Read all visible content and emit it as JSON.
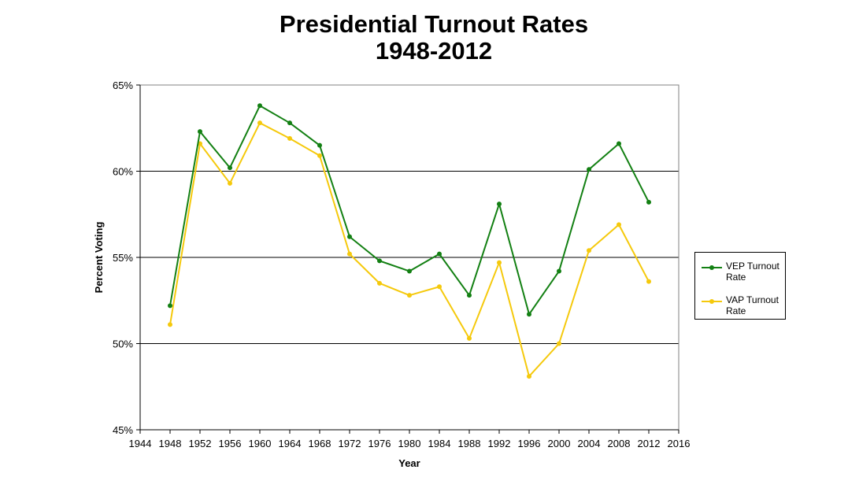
{
  "chart_data": {
    "type": "line",
    "title": [
      "Presidential Turnout Rates",
      "1948-2012"
    ],
    "xlabel": "Year",
    "ylabel": "Percent Voting",
    "x_ticks": [
      "1944",
      "1948",
      "1952",
      "1956",
      "1960",
      "1964",
      "1968",
      "1972",
      "1976",
      "1980",
      "1984",
      "1988",
      "1992",
      "1996",
      "2000",
      "2004",
      "2008",
      "2012",
      "2016"
    ],
    "y_ticks": [
      "45%",
      "50%",
      "55%",
      "60%",
      "65%"
    ],
    "xlim": [
      1944,
      2016
    ],
    "ylim": [
      45,
      65
    ],
    "grid": "horizontal",
    "legend_position": "right",
    "x": [
      1948,
      1952,
      1956,
      1960,
      1964,
      1968,
      1972,
      1976,
      1980,
      1984,
      1988,
      1992,
      1996,
      2000,
      2004,
      2008,
      2012
    ],
    "series": [
      {
        "name": "VEP Turnout Rate",
        "color": "#138013",
        "values": [
          52.2,
          62.3,
          60.2,
          63.8,
          62.8,
          61.5,
          56.2,
          54.8,
          54.2,
          55.2,
          52.8,
          58.1,
          51.7,
          54.2,
          60.1,
          61.6,
          58.2
        ]
      },
      {
        "name": "VAP Turnout Rate",
        "color": "#f5c90c",
        "values": [
          51.1,
          61.6,
          59.3,
          62.8,
          61.9,
          60.9,
          55.2,
          53.5,
          52.8,
          53.3,
          50.3,
          54.7,
          48.1,
          50.0,
          55.4,
          56.9,
          53.6
        ]
      }
    ]
  }
}
